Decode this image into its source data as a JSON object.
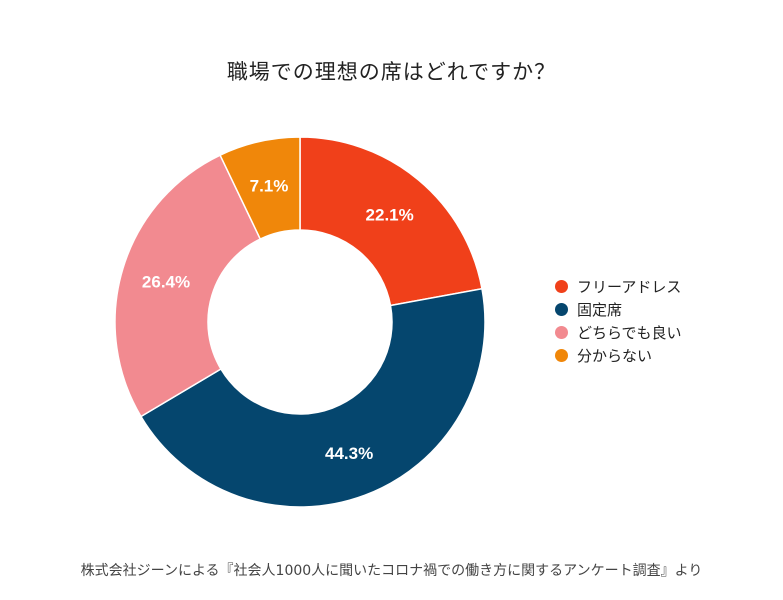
{
  "chart_data": {
    "type": "pie",
    "subtype": "donut",
    "title": "職場での理想の席はどれですか？",
    "categories": [
      "フリーアドレス",
      "固定席",
      "どちらでも良い",
      "分からない"
    ],
    "values": [
      22.1,
      44.3,
      26.4,
      7.1
    ],
    "labels": [
      "22.1%",
      "44.3%",
      "26.4%",
      "7.1%"
    ],
    "colors": [
      "#f0401a",
      "#05466e",
      "#f28a90",
      "#f0870a"
    ],
    "legend_position": "right",
    "start_angle_deg": 0,
    "direction": "clockwise"
  },
  "footer": "株式会社ジーンによる『社会人1000人に聞いたコロナ禍での働き方に関するアンケート調査』より"
}
